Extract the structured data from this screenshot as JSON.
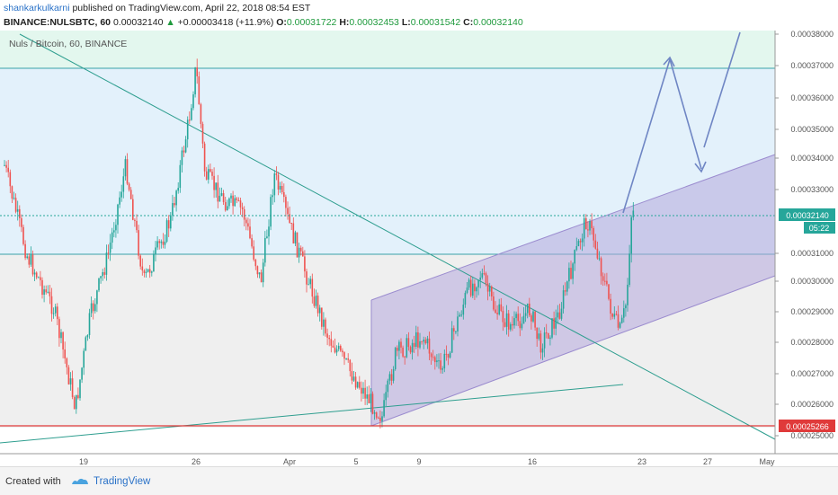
{
  "header": {
    "username": "shankarkulkarni",
    "published_text": "published on TradingView.com, April 22, 2018 08:54 EST",
    "symbol": "BINANCE:NULSBTC, 60",
    "last_price": "0.00032140",
    "change": "+0.00003418 (+11.9%)",
    "o_label": "O:",
    "o_value": "0.00031722",
    "h_label": "H:",
    "h_value": "0.00032453",
    "l_label": "L:",
    "l_value": "0.00031542",
    "c_label": "C:",
    "c_value": "0.00032140"
  },
  "chart": {
    "legend": "Nuls / Bitcoin, 60, BINANCE",
    "price_labels": [
      "0.00038000",
      "0.00037000",
      "0.00036000",
      "0.00035000",
      "0.00034000",
      "0.00033000",
      "0.00031000",
      "0.00030000",
      "0.00029000",
      "0.00028000",
      "0.00027000",
      "0.00026000",
      "0.00025000"
    ],
    "time_labels": [
      "19",
      "26",
      "Apr",
      "5",
      "9",
      "16",
      "23",
      "27",
      "May"
    ],
    "current_price_tag": "0.00032140",
    "countdown_tag": "05:22",
    "support_tag": "0.00025266",
    "colors": {
      "up": "#26a69a",
      "down": "#ef5350",
      "channel": "#9b8ccf",
      "arrow": "#6f86c4",
      "support": "#e03a3a",
      "accent": "#2a72c8"
    }
  },
  "footer": {
    "created_with": "Created with",
    "brand": "TradingView"
  }
}
